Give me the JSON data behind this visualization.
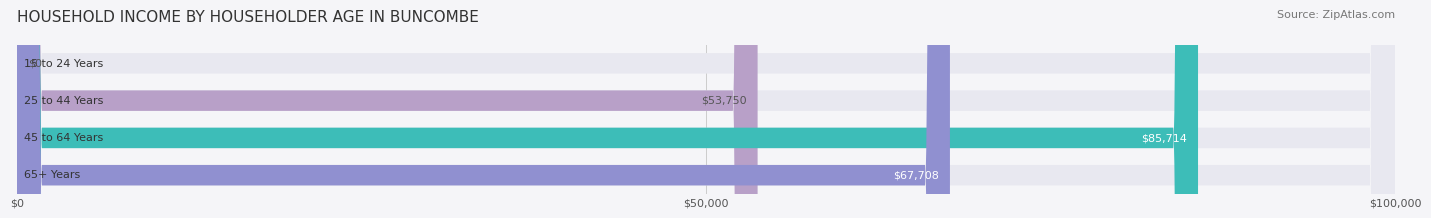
{
  "title": "HOUSEHOLD INCOME BY HOUSEHOLDER AGE IN BUNCOMBE",
  "source": "Source: ZipAtlas.com",
  "categories": [
    "15 to 24 Years",
    "25 to 44 Years",
    "45 to 64 Years",
    "65+ Years"
  ],
  "values": [
    0,
    53750,
    85714,
    67708
  ],
  "bar_colors": [
    "#a8d0e8",
    "#b8a0c8",
    "#3dbdb8",
    "#9090d0"
  ],
  "bar_bg_color": "#e8e8f0",
  "xlim": [
    0,
    100000
  ],
  "xticks": [
    0,
    50000,
    100000
  ],
  "xtick_labels": [
    "$0",
    "$50,000",
    "$100,000"
  ],
  "value_labels": [
    "$0",
    "$53,750",
    "$85,714",
    "$67,708"
  ],
  "value_label_colors": [
    "#555555",
    "#555555",
    "#ffffff",
    "#ffffff"
  ],
  "title_fontsize": 11,
  "source_fontsize": 8,
  "label_fontsize": 8,
  "tick_fontsize": 8,
  "bar_height": 0.55,
  "background_color": "#f5f5f8"
}
